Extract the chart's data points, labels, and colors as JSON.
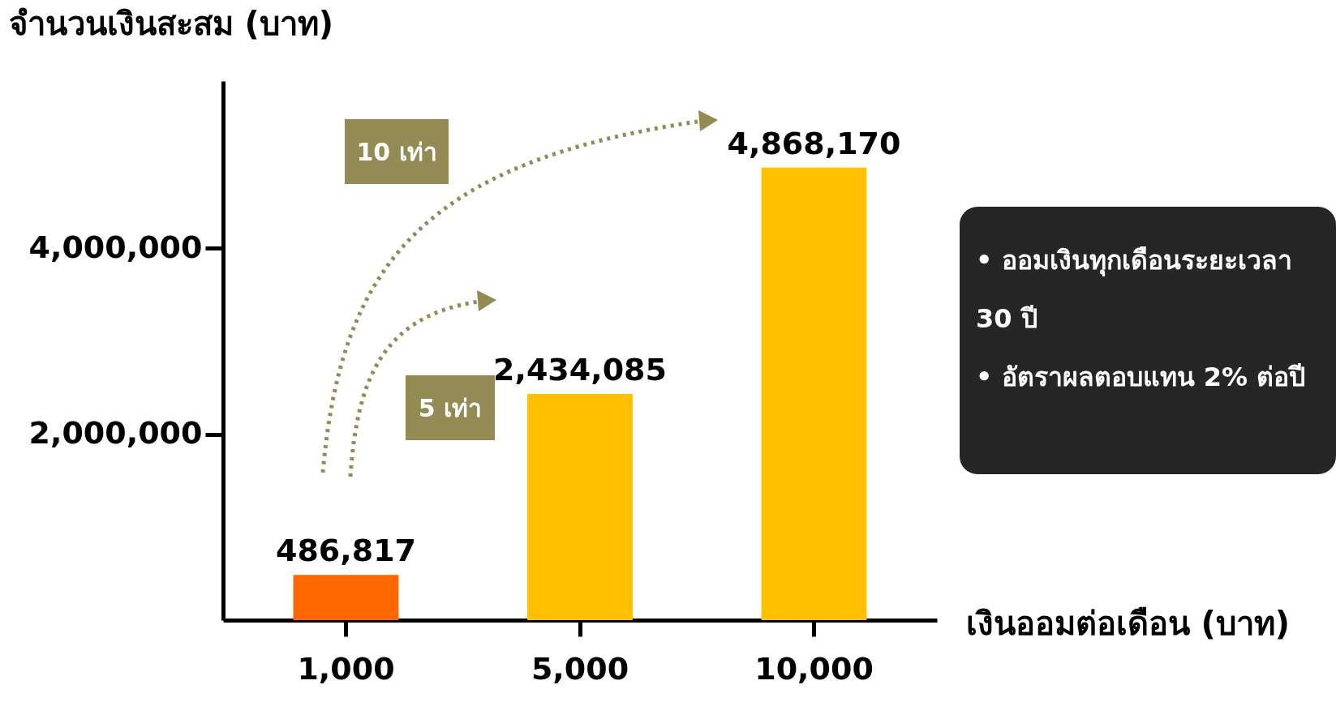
{
  "chart_data": {
    "type": "bar",
    "ylabel": "จำนวนเงินสะสม (บาท)",
    "xlabel": "เงินออมต่อเดือน (บาท)",
    "categories": [
      "1,000",
      "5,000",
      "10,000"
    ],
    "values": [
      486817,
      2434085,
      4868170
    ],
    "colors": [
      "#ff6600",
      "#ffc000",
      "#ffc000"
    ],
    "value_labels": [
      "486,817",
      "2,434,085",
      "4,868,170"
    ],
    "ylim": [
      0,
      5800000
    ],
    "yticks": [
      {
        "value": 2000000,
        "label": "2,000,000"
      },
      {
        "value": 4000000,
        "label": "4,000,000"
      }
    ],
    "grid": false,
    "annotations": [
      "10 เท่า",
      "5 เท่า",
      "• ออมเงินทุกเดือนระยะเวลา 30 ปี",
      "• อัตราผลตอบแทน 2% ต่อปี"
    ]
  }
}
